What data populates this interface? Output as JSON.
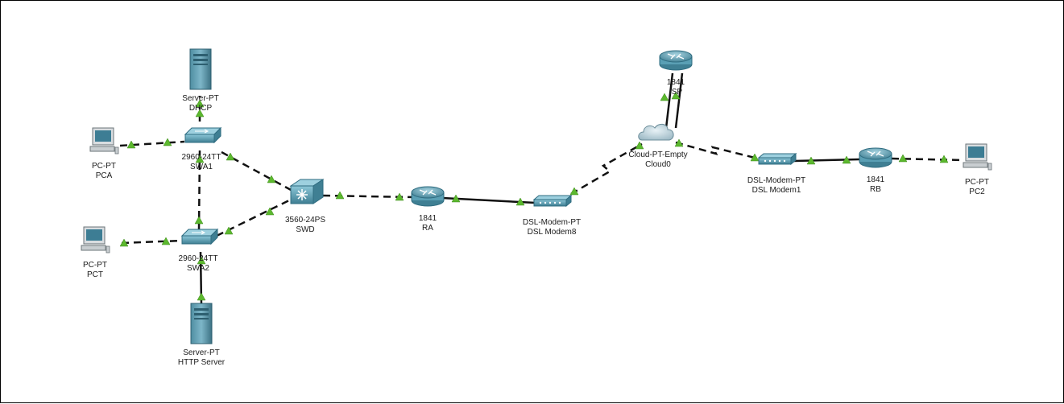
{
  "colors": {
    "link": "#111111",
    "link_up": "#5cb82e",
    "device_teal": "#5a9fb4",
    "device_dark": "#2f6c80",
    "background": "#ffffff"
  },
  "devices": [
    {
      "id": "dhcp",
      "icon": "server-icon",
      "model": "Server-PT",
      "name": "DHCP"
    },
    {
      "id": "pca",
      "icon": "pc-icon",
      "model": "PC-PT",
      "name": "PCA"
    },
    {
      "id": "swa1",
      "icon": "switch-icon",
      "model": "2960-24TT",
      "name": "SWA1"
    },
    {
      "id": "pct",
      "icon": "pc-icon",
      "model": "PC-PT",
      "name": "PCT"
    },
    {
      "id": "swa2",
      "icon": "switch-icon",
      "model": "2960-24TT",
      "name": "SWA2"
    },
    {
      "id": "http",
      "icon": "server-icon",
      "model": "Server-PT",
      "name": "HTTP Server"
    },
    {
      "id": "swd",
      "icon": "multilayer-switch-icon",
      "model": "3560-24PS",
      "name": "SWD"
    },
    {
      "id": "ra",
      "icon": "router-icon",
      "model": "1841",
      "name": "RA"
    },
    {
      "id": "dsl8",
      "icon": "dsl-modem-icon",
      "model": "DSL-Modem-PT",
      "name": "DSL Modem8"
    },
    {
      "id": "cloud0",
      "icon": "cloud-icon",
      "model": "Cloud-PT-Empty",
      "name": "Cloud0"
    },
    {
      "id": "isp",
      "icon": "router-icon",
      "model": "1841",
      "name": "ISP"
    },
    {
      "id": "dsl1",
      "icon": "dsl-modem-icon",
      "model": "DSL-Modem-PT",
      "name": "DSL Modem1"
    },
    {
      "id": "rb",
      "icon": "router-icon",
      "model": "1841",
      "name": "RB"
    },
    {
      "id": "pc2",
      "icon": "pc-icon",
      "model": "PC-PT",
      "name": "PC2"
    }
  ],
  "links": [
    {
      "from": "dhcp",
      "to": "swa1",
      "cable": "copper-cross-over"
    },
    {
      "from": "pca",
      "to": "swa1",
      "cable": "copper-cross-over"
    },
    {
      "from": "swa1",
      "to": "swa2",
      "cable": "copper-cross-over"
    },
    {
      "from": "swa1",
      "to": "swd",
      "cable": "copper-cross-over"
    },
    {
      "from": "pct",
      "to": "swa2",
      "cable": "copper-cross-over"
    },
    {
      "from": "swa2",
      "to": "swd",
      "cable": "copper-cross-over"
    },
    {
      "from": "http",
      "to": "swa2",
      "cable": "copper-straight"
    },
    {
      "from": "swd",
      "to": "ra",
      "cable": "copper-cross-over"
    },
    {
      "from": "ra",
      "to": "dsl8",
      "cable": "copper-straight"
    },
    {
      "from": "dsl8",
      "to": "cloud0",
      "cable": "phone"
    },
    {
      "from": "cloud0",
      "to": "isp",
      "cable": "copper-straight"
    },
    {
      "from": "cloud0",
      "to": "isp",
      "cable": "copper-straight"
    },
    {
      "from": "cloud0",
      "to": "dsl1",
      "cable": "phone"
    },
    {
      "from": "dsl1",
      "to": "rb",
      "cable": "copper-straight"
    },
    {
      "from": "rb",
      "to": "pc2",
      "cable": "copper-cross-over"
    }
  ]
}
